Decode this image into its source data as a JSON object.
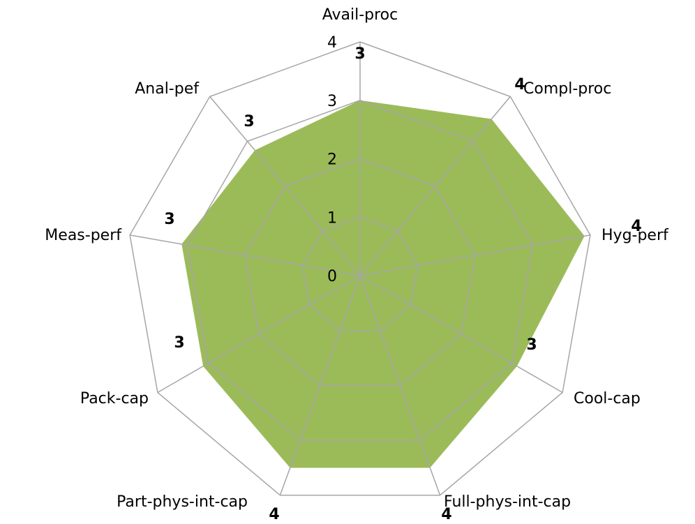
{
  "chart_data": {
    "type": "radar",
    "categories": [
      "Avail-proc",
      "Compl-proc",
      "Hyg-perf",
      "Cool-cap",
      "Full-phys-int-cap",
      "Part-phys-int-cap",
      "Pack-cap",
      "Meas-perf",
      "Anal-pef"
    ],
    "values": [
      3,
      3.5,
      3.9,
      3.1,
      3.5,
      3.5,
      3.1,
      3.1,
      2.8
    ],
    "value_labels": [
      "3",
      "4",
      "4",
      "3",
      "4",
      "4",
      "3",
      "3",
      "3"
    ],
    "color": "#9bbb59",
    "rlim": [
      0,
      4
    ],
    "rticks": [
      0,
      1,
      2,
      3,
      4
    ],
    "grid": true
  }
}
